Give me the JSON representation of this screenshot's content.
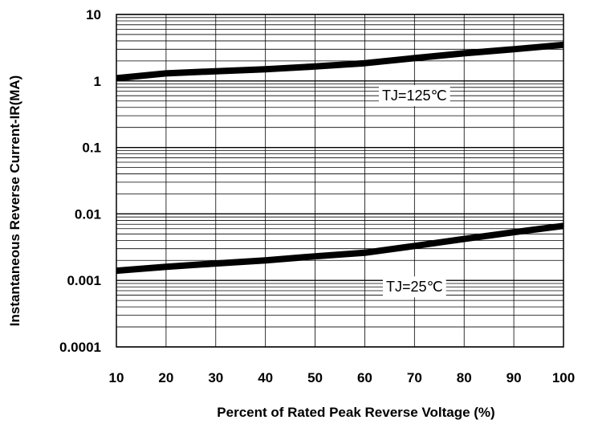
{
  "chart_data": {
    "type": "line",
    "xlabel": "Percent of Rated Peak Reverse Voltage (%)",
    "ylabel": "Instantaneous Reverse Current-IR(MA)",
    "xlim": [
      10,
      100
    ],
    "ylim": [
      0.0001,
      10
    ],
    "yscale": "log",
    "grid": true,
    "x_ticks": [
      "10",
      "20",
      "30",
      "40",
      "50",
      "60",
      "70",
      "80",
      "90",
      "100"
    ],
    "y_ticks": [
      "10",
      "1",
      "0.1",
      "0.01",
      "0.001",
      "0.0001"
    ],
    "series": [
      {
        "x": [
          10,
          20,
          30,
          40,
          50,
          60,
          70,
          80,
          90,
          100
        ],
        "y": [
          1.1,
          1.3,
          1.4,
          1.5,
          1.65,
          1.85,
          2.2,
          2.6,
          3.0,
          3.5
        ]
      },
      {
        "x": [
          10,
          20,
          30,
          40,
          50,
          60,
          70,
          80,
          90,
          100
        ],
        "y": [
          0.0014,
          0.0016,
          0.0018,
          0.002,
          0.0023,
          0.0026,
          0.0033,
          0.0042,
          0.0053,
          0.0066
        ]
      }
    ],
    "annotations": [
      {
        "text": "TJ=125℃",
        "x": 70,
        "y": 0.6
      },
      {
        "text": "TJ=25℃",
        "x": 70,
        "y": 0.0008
      }
    ]
  }
}
